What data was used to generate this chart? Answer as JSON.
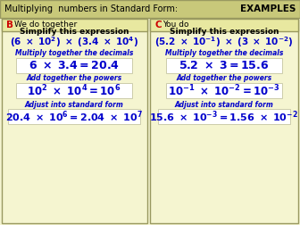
{
  "title": "Multiplying  numbers in Standard Form:",
  "title_right": "EXAMPLES",
  "bg_color": "#f5f5d0",
  "header_bg": "#c8c87a",
  "panel_header_bg": "#e8e8a0",
  "blue_color": "#0000cc",
  "red_color": "#cc0000",
  "left_label": "B",
  "left_title": "We do together",
  "right_label": "C",
  "right_title": "You do",
  "left_section1_label": "Multiply together the decimals",
  "left_section2_label": "Add together the powers",
  "left_section3_label": "Adjust into standard form",
  "right_section1_label": "Multiply together the decimals",
  "right_section2_label": "Add together the powers",
  "right_section3_label": "Adjust into standard form"
}
